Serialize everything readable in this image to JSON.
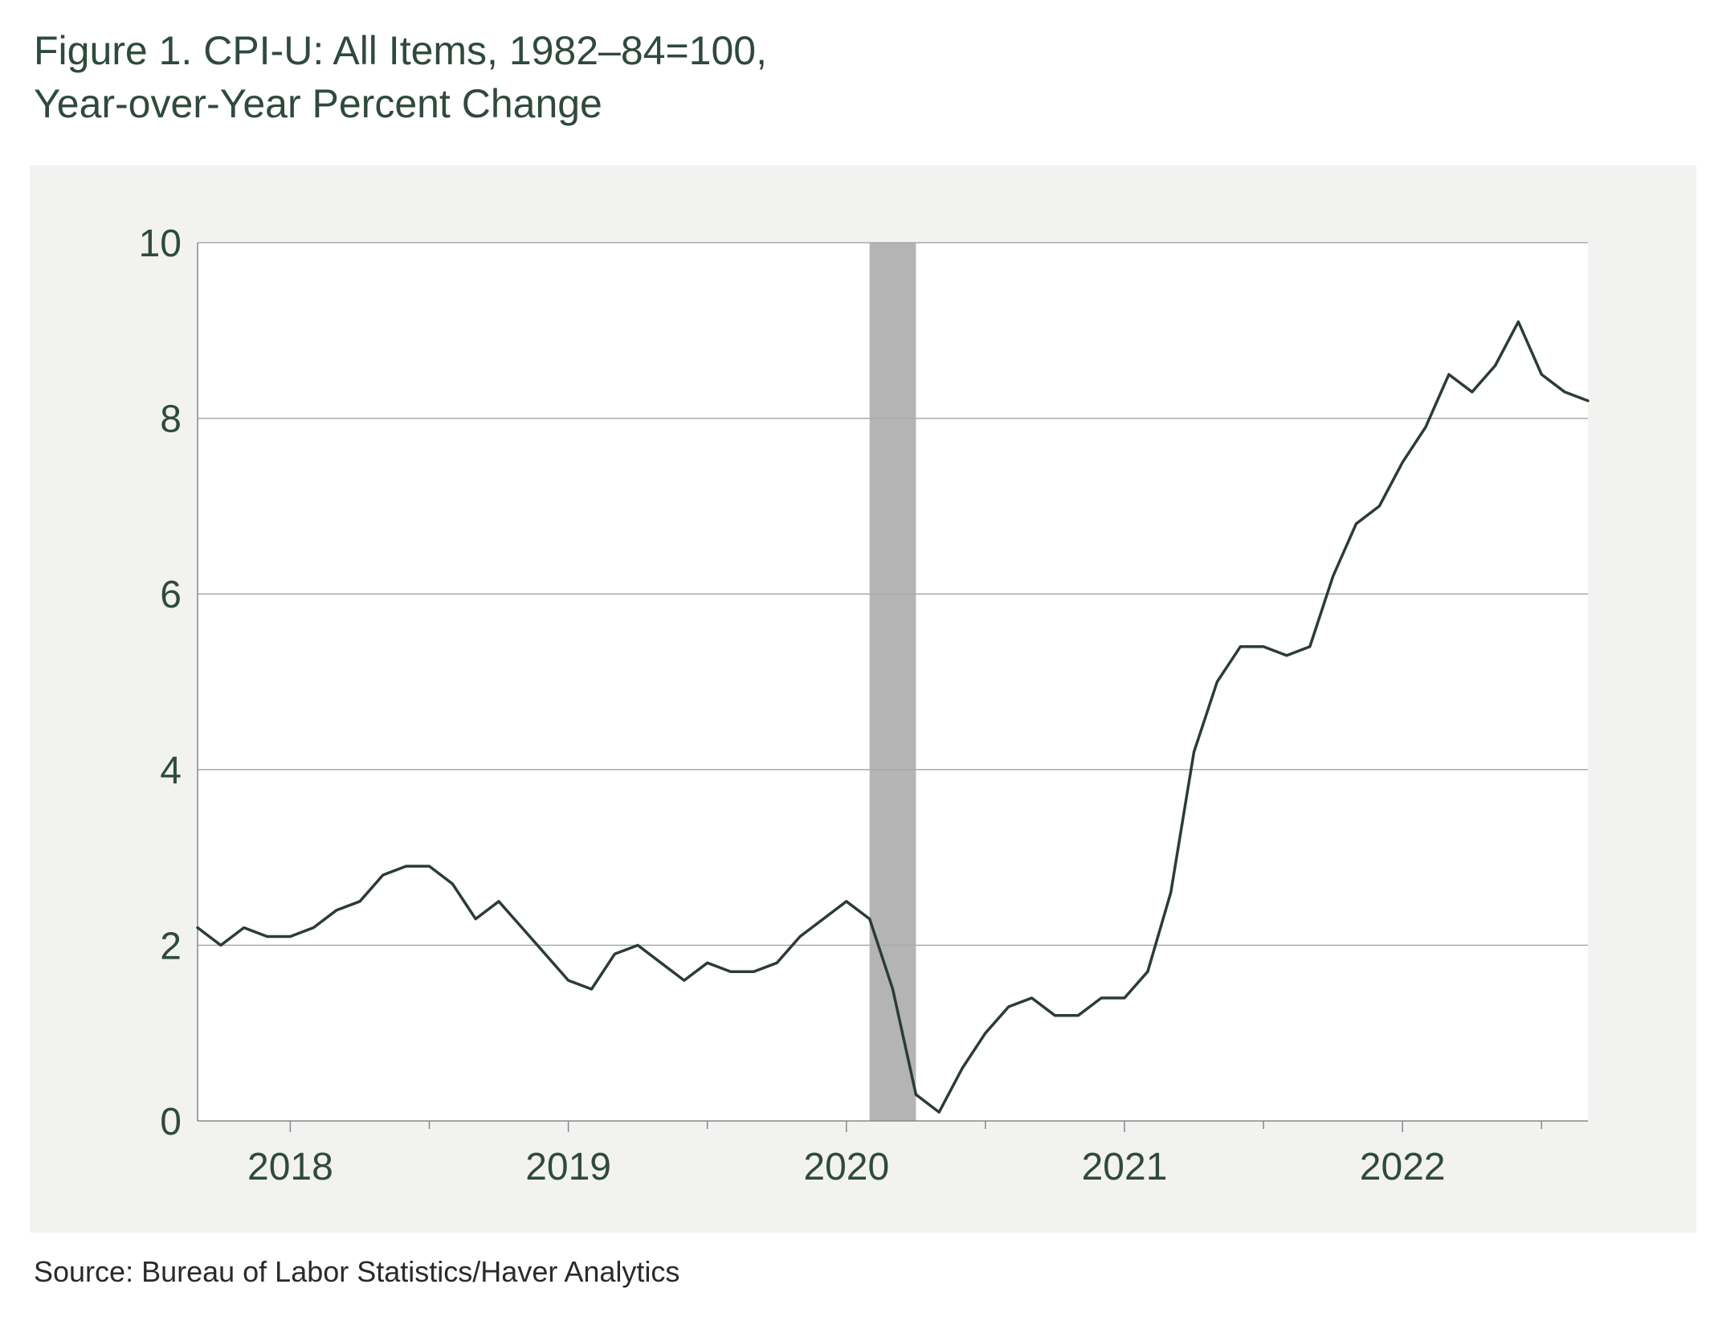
{
  "title_line1": "Figure 1. CPI-U: All Items, 1982–84=100,",
  "title_line2": "Year-over-Year Percent Change",
  "source": "Source: Bureau of Labor Statistics/Haver Analytics",
  "colors": {
    "line": "#2b3d33",
    "recession": "#b3b4b3",
    "grid": "#aaaaaa",
    "panel": "#f2f2f1",
    "text": "#2f4a3d"
  },
  "chart_data": {
    "type": "line",
    "title": "Figure 1. CPI-U: All Items, 1982–84=100, Year-over-Year Percent Change",
    "xlabel": "",
    "ylabel": "",
    "ylim": [
      0,
      10
    ],
    "yticks": [
      "0",
      "2",
      "4",
      "6",
      "8",
      "10"
    ],
    "xlim": [
      "2017-09",
      "2022-09"
    ],
    "xticks": [
      "2018",
      "2019",
      "2020",
      "2021",
      "2022"
    ],
    "grid": "horizontal",
    "recession": {
      "start": "2020-02",
      "end": "2020-04"
    },
    "series": [
      {
        "x": [
          "2017-09",
          "2017-10",
          "2017-11",
          "2017-12",
          "2018-01",
          "2018-02",
          "2018-03",
          "2018-04",
          "2018-05",
          "2018-06",
          "2018-07",
          "2018-08",
          "2018-09",
          "2018-10",
          "2018-11",
          "2018-12",
          "2019-01",
          "2019-02",
          "2019-03",
          "2019-04",
          "2019-05",
          "2019-06",
          "2019-07",
          "2019-08",
          "2019-09",
          "2019-10",
          "2019-11",
          "2019-12",
          "2020-01",
          "2020-02",
          "2020-03",
          "2020-04",
          "2020-05",
          "2020-06",
          "2020-07",
          "2020-08",
          "2020-09",
          "2020-10",
          "2020-11",
          "2020-12",
          "2021-01",
          "2021-02",
          "2021-03",
          "2021-04",
          "2021-05",
          "2021-06",
          "2021-07",
          "2021-08",
          "2021-09",
          "2021-10",
          "2021-11",
          "2021-12",
          "2022-01",
          "2022-02",
          "2022-03",
          "2022-04",
          "2022-05",
          "2022-06",
          "2022-07",
          "2022-08",
          "2022-09"
        ],
        "values": [
          2.2,
          2.0,
          2.2,
          2.1,
          2.1,
          2.2,
          2.4,
          2.5,
          2.8,
          2.9,
          2.9,
          2.7,
          2.3,
          2.5,
          2.2,
          1.9,
          1.6,
          1.5,
          1.9,
          2.0,
          1.8,
          1.6,
          1.8,
          1.7,
          1.7,
          1.8,
          2.1,
          2.3,
          2.5,
          2.3,
          1.5,
          0.3,
          0.1,
          0.6,
          1.0,
          1.3,
          1.4,
          1.2,
          1.2,
          1.4,
          1.4,
          1.7,
          2.6,
          4.2,
          5.0,
          5.4,
          5.4,
          5.3,
          5.4,
          6.2,
          6.8,
          7.0,
          7.5,
          7.9,
          8.5,
          8.3,
          8.6,
          9.1,
          8.5,
          8.3,
          8.2
        ]
      }
    ]
  }
}
